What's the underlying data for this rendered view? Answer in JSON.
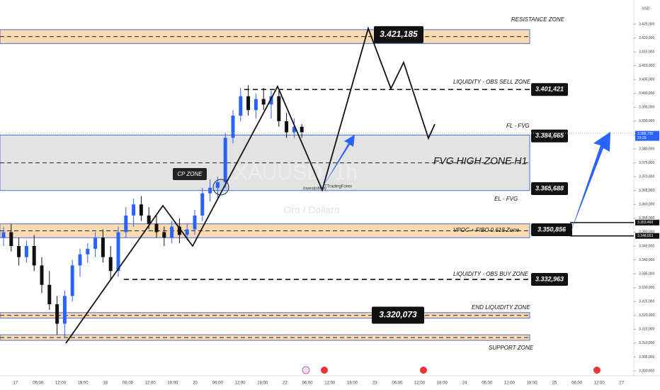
{
  "chart_data": {
    "type": "candlestick",
    "watermark": "XAUUSD, 1h",
    "subtitle": "Oro / Dollaro",
    "currency": "USD",
    "credits": [
      "Investinfinity",
      "TTradingForex"
    ],
    "ylim": [
      3300,
      3425
    ],
    "yticks": [
      {
        "value": 3300,
        "label": "3.300,000"
      },
      {
        "value": 3305,
        "label": "3.305,000"
      },
      {
        "value": 3310,
        "label": "3.310,000"
      },
      {
        "value": 3315,
        "label": "3.315,000"
      },
      {
        "value": 3320,
        "label": "3.320,000"
      },
      {
        "value": 3325,
        "label": "3.325,000"
      },
      {
        "value": 3330,
        "label": "3.330,000"
      },
      {
        "value": 3335,
        "label": "3.335,000"
      },
      {
        "value": 3340,
        "label": "3.340,000"
      },
      {
        "value": 3345,
        "label": "3.345,000"
      },
      {
        "value": 3350,
        "label": "3.350,000"
      },
      {
        "value": 3355,
        "label": "3.355,000"
      },
      {
        "value": 3360,
        "label": "3.360,000"
      },
      {
        "value": 3365,
        "label": "3.365,000"
      },
      {
        "value": 3370,
        "label": "3.370,000"
      },
      {
        "value": 3375,
        "label": "3.375,000"
      },
      {
        "value": 3380,
        "label": "3.380,000"
      },
      {
        "value": 3385,
        "label": "3.385,000"
      },
      {
        "value": 3390,
        "label": "3.390,000"
      },
      {
        "value": 3395,
        "label": "3.395,000"
      },
      {
        "value": 3400,
        "label": "3.400,000"
      },
      {
        "value": 3405,
        "label": "3.405,000"
      },
      {
        "value": 3410,
        "label": "3.410,000"
      },
      {
        "value": 3415,
        "label": "3.415,000"
      },
      {
        "value": 3420,
        "label": "3.420,000"
      },
      {
        "value": 3425,
        "label": "3.425,000"
      }
    ],
    "xticks": [
      "17",
      "06:00",
      "12:00",
      "18:00",
      "18",
      "06:00",
      "12:00",
      "18:00",
      "20",
      "06:00",
      "12:00",
      "18:00",
      "22",
      "06:00",
      "12:00",
      "18:00",
      "23",
      "06:00",
      "12:00",
      "18:00",
      "24",
      "06:00",
      "12:00",
      "18:00",
      "25",
      "06:00",
      "12:00",
      "27"
    ],
    "up_color": "#2962ff",
    "down_color": "#111111",
    "candles": [
      {
        "open": 3348,
        "high": 3352,
        "low": 3345,
        "close": 3350
      },
      {
        "open": 3350,
        "high": 3353,
        "low": 3343,
        "close": 3345
      },
      {
        "open": 3345,
        "high": 3348,
        "low": 3338,
        "close": 3341
      },
      {
        "open": 3341,
        "high": 3347,
        "low": 3339,
        "close": 3345
      },
      {
        "open": 3345,
        "high": 3349,
        "low": 3336,
        "close": 3338
      },
      {
        "open": 3338,
        "high": 3341,
        "low": 3328,
        "close": 3331
      },
      {
        "open": 3331,
        "high": 3336,
        "low": 3322,
        "close": 3324
      },
      {
        "open": 3324,
        "high": 3327,
        "low": 3313,
        "close": 3317
      },
      {
        "open": 3317,
        "high": 3329,
        "low": 3312,
        "close": 3327
      },
      {
        "open": 3327,
        "high": 3340,
        "low": 3325,
        "close": 3338
      },
      {
        "open": 3338,
        "high": 3344,
        "low": 3334,
        "close": 3342
      },
      {
        "open": 3342,
        "high": 3346,
        "low": 3339,
        "close": 3344
      },
      {
        "open": 3344,
        "high": 3350,
        "low": 3341,
        "close": 3348
      },
      {
        "open": 3348,
        "high": 3351,
        "low": 3339,
        "close": 3341
      },
      {
        "open": 3341,
        "high": 3345,
        "low": 3333,
        "close": 3336
      },
      {
        "open": 3336,
        "high": 3352,
        "low": 3334,
        "close": 3350
      },
      {
        "open": 3350,
        "high": 3359,
        "low": 3348,
        "close": 3356
      },
      {
        "open": 3356,
        "high": 3362,
        "low": 3352,
        "close": 3360
      },
      {
        "open": 3360,
        "high": 3363,
        "low": 3354,
        "close": 3356
      },
      {
        "open": 3356,
        "high": 3359,
        "low": 3351,
        "close": 3353
      },
      {
        "open": 3353,
        "high": 3356,
        "low": 3348,
        "close": 3350
      },
      {
        "open": 3350,
        "high": 3352,
        "low": 3345,
        "close": 3348
      },
      {
        "open": 3348,
        "high": 3354,
        "low": 3346,
        "close": 3352
      },
      {
        "open": 3352,
        "high": 3355,
        "low": 3346,
        "close": 3349
      },
      {
        "open": 3349,
        "high": 3353,
        "low": 3347,
        "close": 3351
      },
      {
        "open": 3351,
        "high": 3358,
        "low": 3349,
        "close": 3356
      },
      {
        "open": 3356,
        "high": 3366,
        "low": 3354,
        "close": 3364
      },
      {
        "open": 3364,
        "high": 3369,
        "low": 3361,
        "close": 3366
      },
      {
        "open": 3366,
        "high": 3370,
        "low": 3362,
        "close": 3368
      },
      {
        "open": 3368,
        "high": 3386,
        "low": 3366,
        "close": 3384
      },
      {
        "open": 3384,
        "high": 3394,
        "low": 3382,
        "close": 3392
      },
      {
        "open": 3392,
        "high": 3402,
        "low": 3390,
        "close": 3399
      },
      {
        "open": 3399,
        "high": 3403,
        "low": 3392,
        "close": 3394
      },
      {
        "open": 3394,
        "high": 3400,
        "low": 3391,
        "close": 3398
      },
      {
        "open": 3398,
        "high": 3402,
        "low": 3394,
        "close": 3396
      },
      {
        "open": 3396,
        "high": 3401,
        "low": 3391,
        "close": 3399
      },
      {
        "open": 3399,
        "high": 3401,
        "low": 3388,
        "close": 3390
      },
      {
        "open": 3390,
        "high": 3393,
        "low": 3384,
        "close": 3386
      },
      {
        "open": 3386,
        "high": 3391,
        "low": 3384,
        "close": 3388
      },
      {
        "open": 3388,
        "high": 3389,
        "low": 3384,
        "close": 3386
      }
    ],
    "bands": [
      {
        "range": [
          3418,
          3423
        ],
        "color": "#f9d29d"
      },
      {
        "range": [
          3365,
          3385
        ],
        "color": "#dcdcdc"
      },
      {
        "range": [
          3348,
          3353
        ],
        "color": "#f9d29d"
      },
      {
        "range": [
          3319,
          3321
        ],
        "color": "#f9d29d"
      },
      {
        "range": [
          3311,
          3313
        ],
        "color": "#f9d29d"
      }
    ],
    "zones": [
      {
        "label": "RESISTANCE  ZONE",
        "price": {
          "value": 3421.185,
          "label": "3.421,185"
        }
      },
      {
        "label": "LIQUIDITY - OBS SELL ZONE",
        "price": {
          "value": 3401.421,
          "label": "3.401,421"
        }
      },
      {
        "label": "FL - FVG",
        "price": {
          "value": 3384.665,
          "label": "3.384,665"
        }
      },
      {
        "label": "EL - FVG",
        "price": {
          "value": 3365.688,
          "label": "3.365,688"
        }
      },
      {
        "label": "VPOC + FIBO 0.618 Zone",
        "price": {
          "value": 3350.856,
          "label": "3.350,856"
        }
      },
      {
        "label": "LIQUIDITY - OBS BUY ZONE",
        "price": {
          "value": 3332.963,
          "label": "3.332,963"
        }
      },
      {
        "label": "END LIQUIDITY ZONE",
        "price": {
          "value": 3320.073,
          "label": "3.320,073"
        }
      },
      {
        "label": "SUPPORT ZONE"
      }
    ],
    "fvg_label": "FVG HIGH ZONE H1",
    "cp_label": "CP ZONE",
    "axis_marks": [
      {
        "value": 3385.735,
        "label": "3.385,735",
        "time": "23:29"
      },
      {
        "value": 3353.46,
        "label": "3.353,460"
      },
      {
        "value": 3348.653,
        "label": "3.348,653"
      }
    ]
  }
}
